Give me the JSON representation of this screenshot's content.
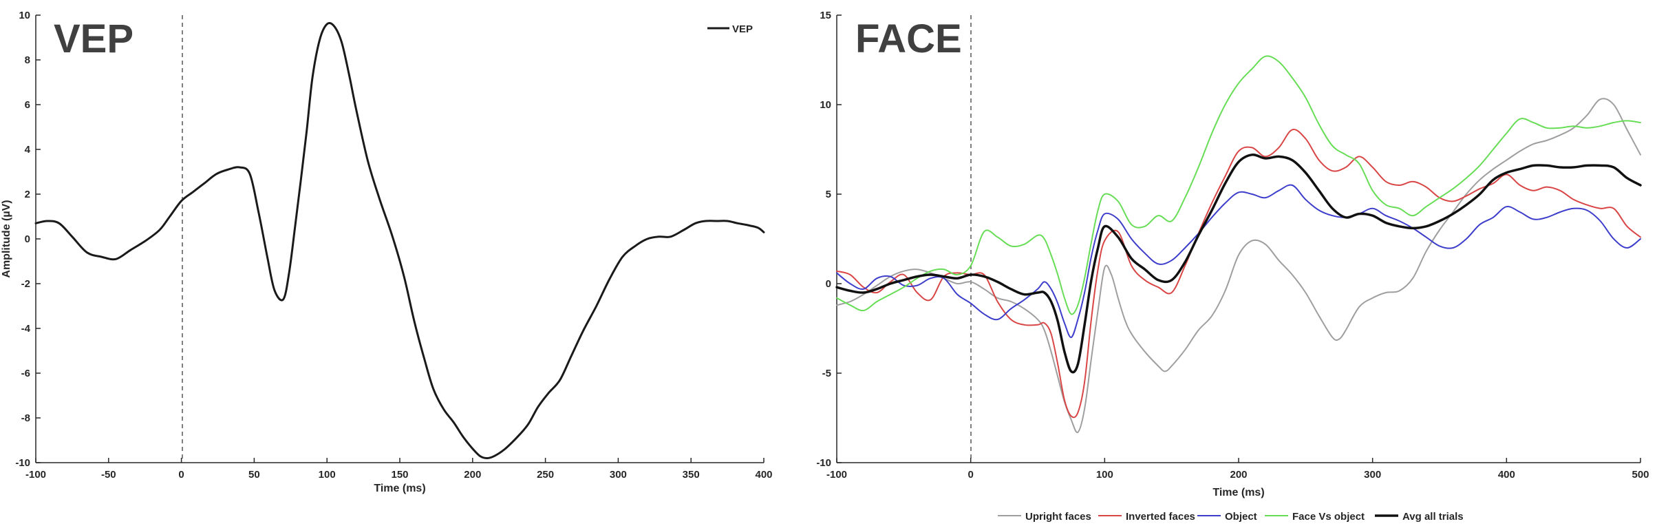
{
  "chart_data": [
    {
      "type": "line",
      "panel_title": "VEP",
      "xlabel": "Time (ms)",
      "ylabel": "Amplitude (µV)",
      "xlim": [
        -100,
        400
      ],
      "ylim": [
        -10,
        10
      ],
      "xticks": [
        -100,
        -50,
        0,
        50,
        100,
        150,
        200,
        250,
        300,
        350,
        400
      ],
      "yticks": [
        -10,
        -8,
        -6,
        -4,
        -2,
        0,
        2,
        4,
        6,
        8,
        10
      ],
      "xtick_labels": [
        "-100",
        "-50",
        "0",
        "50",
        "100",
        "150",
        "200",
        "250",
        "300",
        "350",
        "400"
      ],
      "ytick_labels": [
        "-10",
        "-8",
        "-6",
        "-4",
        "-2",
        "0",
        "2",
        "4",
        "6",
        "8",
        "10"
      ],
      "grid": false,
      "legend_position": "top-right",
      "stimulus_onset": 0,
      "series": [
        {
          "name": "VEP",
          "color": "#1a1a1a",
          "x": [
            -100,
            -92,
            -84,
            -75,
            -65,
            -55,
            -45,
            -35,
            -25,
            -15,
            -8,
            0,
            8,
            16,
            24,
            32,
            40,
            47,
            53,
            59,
            64,
            70,
            74,
            78,
            82,
            86,
            90,
            95,
            100,
            105,
            110,
            115,
            120,
            128,
            136,
            145,
            153,
            160,
            167,
            173,
            180,
            187,
            193,
            199,
            205,
            210,
            215,
            222,
            230,
            238,
            245,
            252,
            260,
            268,
            276,
            285,
            294,
            303,
            312,
            320,
            328,
            336,
            345,
            353,
            360,
            368,
            375,
            382,
            390,
            396,
            400
          ],
          "y": [
            0.7,
            0.8,
            0.7,
            0.1,
            -0.6,
            -0.8,
            -0.9,
            -0.5,
            -0.1,
            0.4,
            1.0,
            1.7,
            2.1,
            2.5,
            2.9,
            3.1,
            3.2,
            2.9,
            1.2,
            -0.8,
            -2.3,
            -2.7,
            -1.5,
            0.5,
            2.6,
            4.8,
            7.2,
            8.9,
            9.6,
            9.5,
            8.8,
            7.4,
            5.8,
            3.5,
            1.8,
            0.1,
            -1.7,
            -3.7,
            -5.4,
            -6.7,
            -7.6,
            -8.2,
            -8.8,
            -9.3,
            -9.7,
            -9.8,
            -9.7,
            -9.4,
            -8.9,
            -8.3,
            -7.5,
            -6.9,
            -6.3,
            -5.2,
            -4.1,
            -3.0,
            -1.8,
            -0.8,
            -0.3,
            0.0,
            0.1,
            0.1,
            0.4,
            0.7,
            0.8,
            0.8,
            0.8,
            0.7,
            0.6,
            0.5,
            0.3
          ]
        }
      ]
    },
    {
      "type": "line",
      "panel_title": "FACE",
      "xlabel": "Time (ms)",
      "ylabel": "",
      "xlim": [
        -100,
        500
      ],
      "ylim": [
        -10,
        15
      ],
      "xticks": [
        -100,
        0,
        100,
        200,
        300,
        400,
        500
      ],
      "yticks": [
        -10,
        -5,
        0,
        5,
        10,
        15
      ],
      "xtick_labels": [
        "-100",
        "0",
        "100",
        "200",
        "300",
        "400",
        "500"
      ],
      "ytick_labels": [
        "-10",
        "-5",
        "0",
        "5",
        "10",
        "15"
      ],
      "grid": false,
      "legend_position": "bottom",
      "stimulus_onset": 0,
      "series": [
        {
          "name": "Upright faces",
          "color": "#9e9e9e",
          "x": [
            -100,
            -90,
            -80,
            -70,
            -60,
            -50,
            -40,
            -30,
            -20,
            -10,
            0,
            10,
            20,
            30,
            40,
            50,
            55,
            60,
            65,
            70,
            75,
            80,
            85,
            90,
            95,
            100,
            105,
            110,
            115,
            120,
            130,
            140,
            145,
            150,
            160,
            170,
            180,
            190,
            200,
            210,
            220,
            230,
            240,
            250,
            260,
            270,
            275,
            280,
            290,
            300,
            310,
            320,
            330,
            340,
            350,
            360,
            370,
            380,
            390,
            400,
            410,
            420,
            430,
            440,
            450,
            460,
            470,
            480,
            490,
            500
          ],
          "y": [
            -1.2,
            -1.0,
            -0.6,
            -0.1,
            0.4,
            0.7,
            0.8,
            0.6,
            0.3,
            0.0,
            0.1,
            -0.3,
            -0.8,
            -1.0,
            -1.4,
            -2.0,
            -2.6,
            -3.8,
            -5.2,
            -6.6,
            -7.6,
            -8.3,
            -7.0,
            -4.2,
            -1.5,
            0.9,
            0.5,
            -0.8,
            -2.0,
            -2.8,
            -3.8,
            -4.6,
            -4.9,
            -4.6,
            -3.7,
            -2.6,
            -1.8,
            -0.4,
            1.6,
            2.4,
            2.2,
            1.3,
            0.5,
            -0.5,
            -1.8,
            -3.0,
            -3.1,
            -2.6,
            -1.3,
            -0.8,
            -0.5,
            -0.4,
            0.3,
            1.8,
            3.0,
            4.0,
            5.0,
            5.8,
            6.4,
            6.9,
            7.4,
            7.8,
            8.0,
            8.3,
            8.7,
            9.4,
            10.3,
            10.0,
            8.6,
            7.2
          ]
        },
        {
          "name": "Inverted faces",
          "color": "#d94545",
          "x": [
            -100,
            -90,
            -80,
            -70,
            -60,
            -50,
            -40,
            -30,
            -20,
            -10,
            0,
            10,
            20,
            30,
            40,
            50,
            55,
            60,
            65,
            70,
            75,
            80,
            85,
            90,
            95,
            100,
            110,
            120,
            130,
            140,
            150,
            160,
            170,
            180,
            190,
            200,
            210,
            220,
            230,
            240,
            250,
            260,
            270,
            280,
            290,
            300,
            310,
            320,
            330,
            340,
            350,
            360,
            370,
            380,
            390,
            400,
            410,
            420,
            430,
            440,
            450,
            460,
            470,
            480,
            490,
            500
          ],
          "y": [
            0.7,
            0.5,
            -0.2,
            -0.5,
            0.1,
            0.5,
            -0.5,
            -0.9,
            0.4,
            0.6,
            0.5,
            0.5,
            -1.0,
            -2.0,
            -2.3,
            -2.3,
            -2.2,
            -2.8,
            -4.5,
            -6.5,
            -7.4,
            -7.2,
            -5.5,
            -2.0,
            0.8,
            2.4,
            2.9,
            1.0,
            0.2,
            -0.2,
            -0.5,
            1.0,
            2.8,
            4.5,
            6.0,
            7.4,
            7.6,
            7.1,
            7.6,
            8.6,
            8.1,
            6.9,
            6.3,
            6.5,
            7.1,
            6.5,
            5.7,
            5.5,
            5.7,
            5.4,
            4.8,
            4.6,
            4.9,
            5.3,
            5.6,
            6.1,
            5.5,
            5.2,
            5.4,
            5.2,
            4.7,
            4.4,
            4.2,
            4.2,
            3.2,
            2.6
          ]
        },
        {
          "name": "Object",
          "color": "#3d3dcc",
          "x": [
            -100,
            -90,
            -80,
            -70,
            -60,
            -50,
            -40,
            -30,
            -20,
            -10,
            0,
            10,
            20,
            30,
            40,
            50,
            55,
            60,
            65,
            70,
            75,
            80,
            85,
            90,
            95,
            100,
            110,
            120,
            130,
            140,
            150,
            160,
            170,
            180,
            190,
            200,
            210,
            220,
            230,
            240,
            250,
            260,
            270,
            280,
            290,
            300,
            310,
            320,
            330,
            340,
            350,
            360,
            370,
            380,
            390,
            400,
            410,
            420,
            430,
            440,
            450,
            460,
            470,
            480,
            490,
            500
          ],
          "y": [
            0.6,
            0.0,
            -0.3,
            0.3,
            0.4,
            -0.1,
            -0.1,
            0.3,
            0.3,
            -0.6,
            -1.1,
            -1.7,
            -2.0,
            -1.4,
            -0.9,
            -0.3,
            0.1,
            -0.3,
            -1.1,
            -2.2,
            -3.0,
            -2.0,
            -0.5,
            1.5,
            3.0,
            3.9,
            3.6,
            2.5,
            1.7,
            1.1,
            1.3,
            2.0,
            2.8,
            3.7,
            4.5,
            5.1,
            5.0,
            4.8,
            5.2,
            5.5,
            4.7,
            4.1,
            3.8,
            3.7,
            3.9,
            4.2,
            3.8,
            3.5,
            3.1,
            2.6,
            2.1,
            2.0,
            2.5,
            3.3,
            3.7,
            4.3,
            4.0,
            3.6,
            3.7,
            4.0,
            4.2,
            4.1,
            3.5,
            2.5,
            2.0,
            2.5
          ]
        },
        {
          "name": "Face Vs object",
          "color": "#66dd55",
          "x": [
            -100,
            -90,
            -80,
            -70,
            -60,
            -50,
            -40,
            -30,
            -20,
            -10,
            0,
            10,
            20,
            30,
            40,
            50,
            55,
            60,
            65,
            70,
            75,
            80,
            85,
            90,
            95,
            100,
            110,
            120,
            130,
            140,
            150,
            160,
            170,
            180,
            190,
            200,
            210,
            220,
            230,
            240,
            250,
            260,
            270,
            280,
            290,
            300,
            310,
            320,
            330,
            340,
            350,
            360,
            370,
            380,
            390,
            400,
            410,
            420,
            430,
            440,
            450,
            460,
            470,
            480,
            490,
            500
          ],
          "y": [
            -0.8,
            -1.2,
            -1.5,
            -1.0,
            -0.6,
            -0.2,
            0.3,
            0.7,
            0.8,
            0.5,
            1.0,
            2.9,
            2.6,
            2.1,
            2.2,
            2.7,
            2.5,
            1.6,
            0.5,
            -0.8,
            -1.7,
            -1.2,
            0.3,
            2.3,
            4.1,
            5.0,
            4.6,
            3.3,
            3.2,
            3.8,
            3.5,
            4.8,
            6.5,
            8.4,
            10.0,
            11.2,
            12.0,
            12.7,
            12.4,
            11.5,
            10.4,
            8.9,
            7.7,
            7.2,
            6.7,
            5.2,
            4.4,
            4.2,
            3.8,
            4.3,
            4.8,
            5.3,
            5.9,
            6.6,
            7.5,
            8.4,
            9.2,
            9.0,
            8.7,
            8.7,
            8.8,
            8.7,
            8.8,
            9.0,
            9.1,
            9.0
          ]
        },
        {
          "name": "Avg all trials",
          "color": "#111111",
          "x": [
            -100,
            -90,
            -80,
            -70,
            -60,
            -50,
            -40,
            -30,
            -20,
            -10,
            0,
            10,
            20,
            30,
            40,
            50,
            55,
            60,
            65,
            70,
            75,
            80,
            85,
            90,
            95,
            100,
            110,
            120,
            130,
            140,
            150,
            160,
            170,
            180,
            190,
            200,
            210,
            220,
            230,
            240,
            250,
            260,
            270,
            280,
            290,
            300,
            310,
            320,
            330,
            340,
            350,
            360,
            370,
            380,
            390,
            400,
            410,
            420,
            430,
            440,
            450,
            460,
            470,
            480,
            490,
            500
          ],
          "y": [
            -0.2,
            -0.4,
            -0.5,
            -0.3,
            0.0,
            0.2,
            0.4,
            0.5,
            0.4,
            0.3,
            0.5,
            0.4,
            0.1,
            -0.3,
            -0.6,
            -0.5,
            -0.5,
            -1.0,
            -2.1,
            -3.8,
            -4.9,
            -4.5,
            -2.3,
            0.2,
            2.0,
            3.2,
            2.6,
            1.4,
            0.8,
            0.2,
            0.2,
            1.2,
            2.7,
            4.1,
            5.6,
            6.8,
            7.2,
            7.0,
            7.1,
            6.9,
            6.2,
            5.2,
            4.2,
            3.7,
            3.9,
            3.8,
            3.4,
            3.2,
            3.1,
            3.2,
            3.5,
            3.9,
            4.4,
            5.0,
            5.8,
            6.2,
            6.4,
            6.6,
            6.6,
            6.5,
            6.5,
            6.6,
            6.6,
            6.5,
            5.9,
            5.5
          ]
        }
      ]
    }
  ]
}
